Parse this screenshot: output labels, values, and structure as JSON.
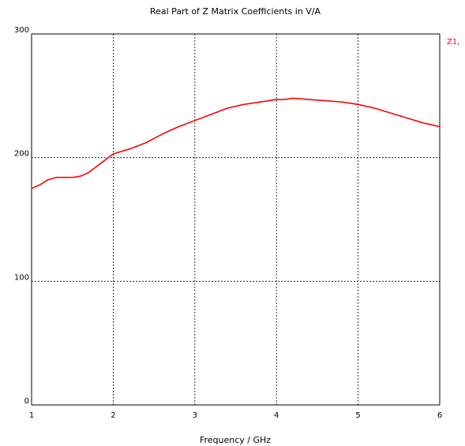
{
  "chart_data": {
    "type": "line",
    "title": "Real Part of Z Matrix Coefficients in V/A",
    "xlabel": "Frequency / GHz",
    "ylabel": "",
    "xlim": [
      1,
      6
    ],
    "ylim": [
      0,
      300
    ],
    "xticks": [
      "1",
      "2",
      "3",
      "4",
      "5",
      "6"
    ],
    "yticks": [
      "0",
      "100",
      "200",
      "300"
    ],
    "grid": true,
    "legend": "right",
    "series": [
      {
        "name": "Z1,",
        "color": "#ff0000",
        "x": [
          1.0,
          1.1,
          1.2,
          1.3,
          1.4,
          1.5,
          1.6,
          1.7,
          1.8,
          1.9,
          2.0,
          2.2,
          2.4,
          2.6,
          2.8,
          3.0,
          3.2,
          3.4,
          3.6,
          3.8,
          4.0,
          4.1,
          4.2,
          4.4,
          4.6,
          4.8,
          5.0,
          5.2,
          5.4,
          5.6,
          5.8,
          6.0
        ],
        "y": [
          175,
          178,
          182,
          184,
          184,
          184,
          185,
          188,
          193,
          198,
          203,
          207,
          212,
          219,
          225,
          230,
          235,
          240,
          243,
          245,
          247,
          247,
          248,
          247,
          246,
          245,
          243,
          240,
          236,
          232,
          228,
          225
        ]
      }
    ]
  }
}
